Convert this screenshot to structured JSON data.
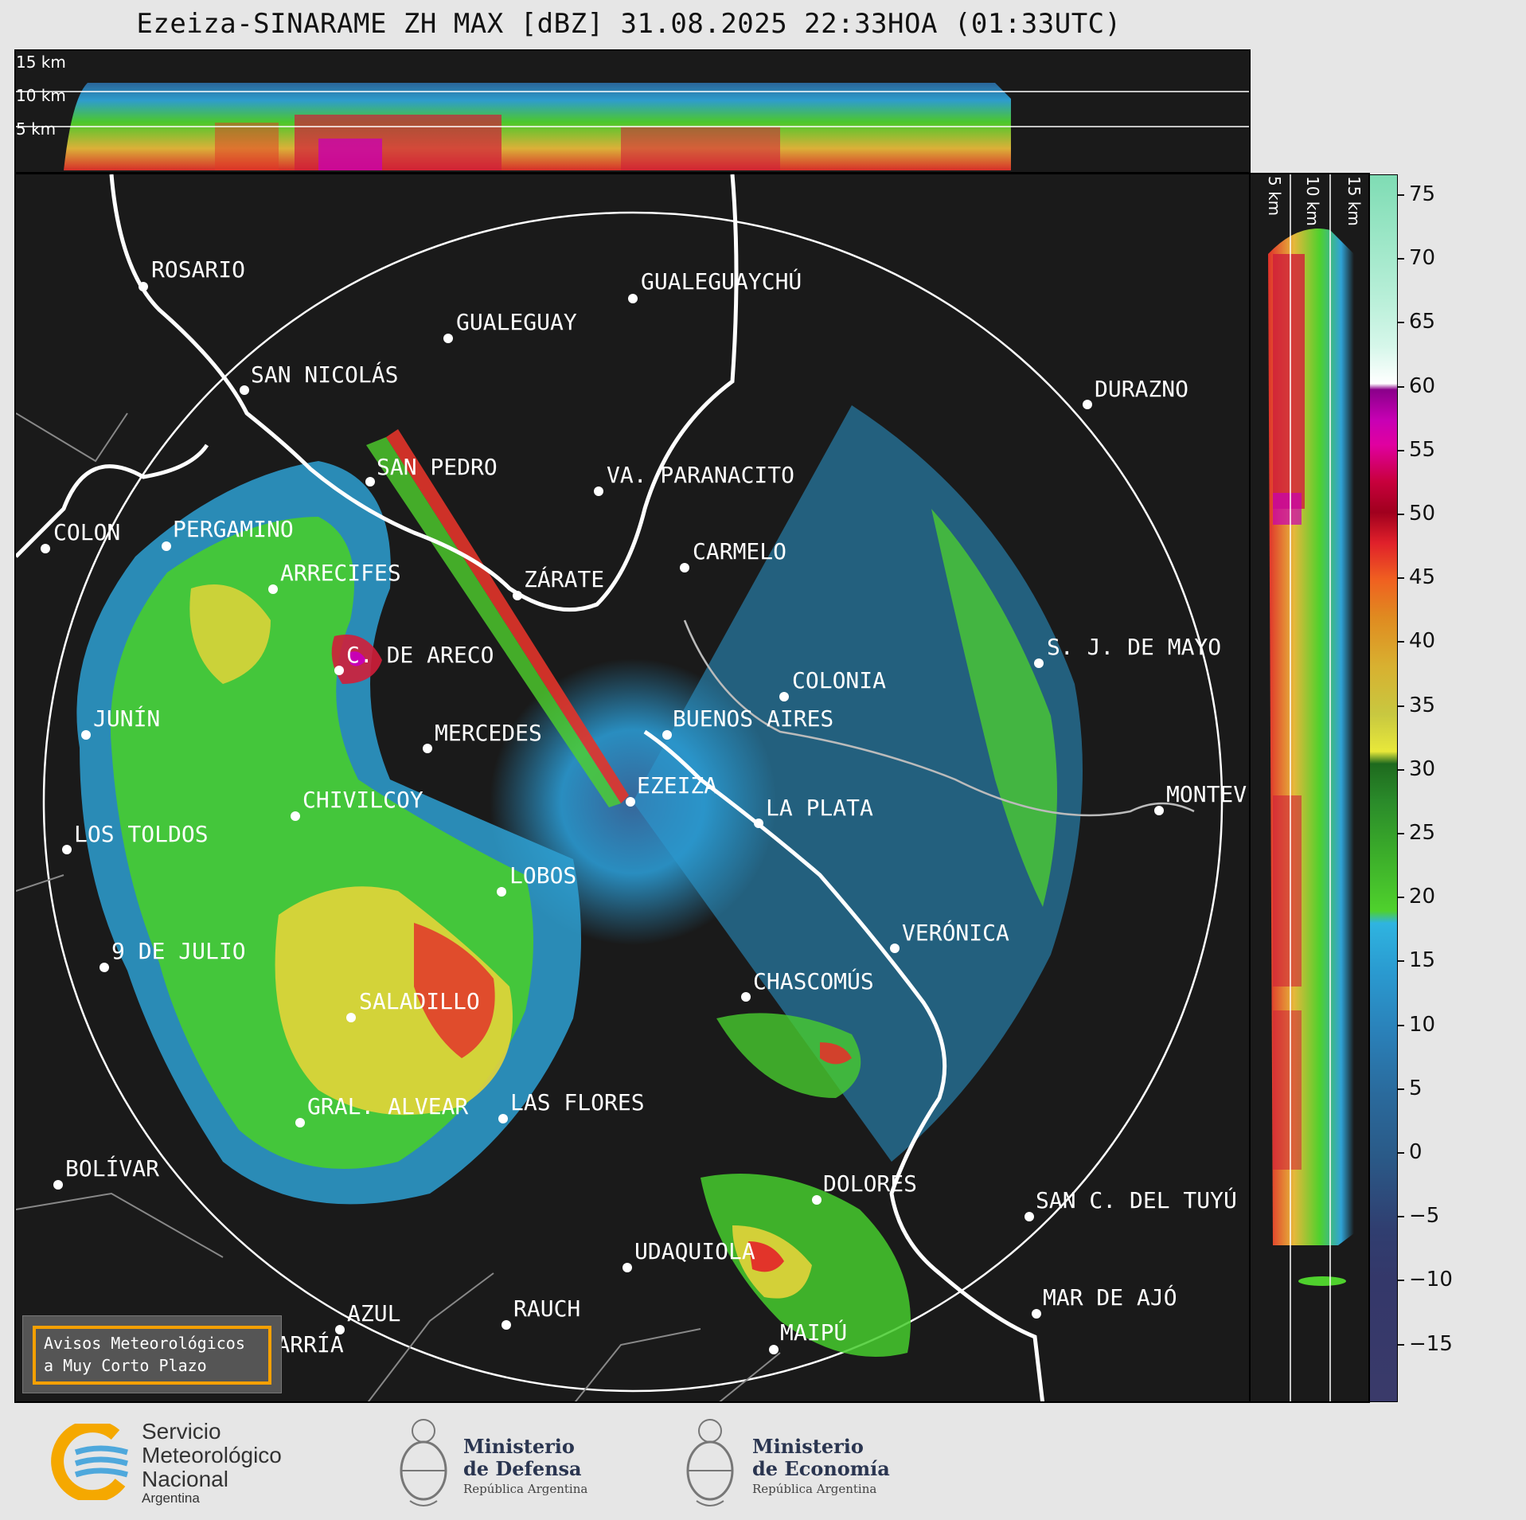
{
  "title": "Ezeiza-SINARAME ZH MAX [dBZ] 31.08.2025 22:33HOA (01:33UTC)",
  "top_panel": {
    "alt_labels": [
      "15 km",
      "10 km",
      "5 km"
    ]
  },
  "side_panel": {
    "alt_labels": [
      "5 km",
      "10 km",
      "15 km"
    ]
  },
  "colorbar": {
    "ticks": [
      "75",
      "70",
      "65",
      "60",
      "55",
      "50",
      "45",
      "40",
      "35",
      "30",
      "25",
      "20",
      "15",
      "10",
      "5",
      "0",
      "−5",
      "−10",
      "−15"
    ]
  },
  "cities": [
    {
      "label": "ROSARIO"
    },
    {
      "label": "GUALEGUAYCHÚ"
    },
    {
      "label": "GUALEGUAY"
    },
    {
      "label": "SAN NICOLÁS"
    },
    {
      "label": "DURAZNO"
    },
    {
      "label": "SAN PEDRO"
    },
    {
      "label": "VA. PARANACITO"
    },
    {
      "label": "COLON"
    },
    {
      "label": "PERGAMINO"
    },
    {
      "label": "CARMELO"
    },
    {
      "label": "ARRECIFES"
    },
    {
      "label": "ZÁRATE"
    },
    {
      "label": "S. J. DE MAYO"
    },
    {
      "label": "C. DE ARECO"
    },
    {
      "label": "COLONIA"
    },
    {
      "label": "JUNÍN"
    },
    {
      "label": "BUENOS AIRES"
    },
    {
      "label": "MERCEDES"
    },
    {
      "label": "EZEIZA"
    },
    {
      "label": "MONTEV"
    },
    {
      "label": "CHIVILCOY"
    },
    {
      "label": "LA PLATA"
    },
    {
      "label": "LOS TOLDOS"
    },
    {
      "label": "LOBOS"
    },
    {
      "label": "VERÓNICA"
    },
    {
      "label": "9 DE JULIO"
    },
    {
      "label": "CHASCOMÚS"
    },
    {
      "label": "SALADILLO"
    },
    {
      "label": "GRAL. ALVEAR"
    },
    {
      "label": "LAS FLORES"
    },
    {
      "label": "BOLÍVAR"
    },
    {
      "label": "DOLORES"
    },
    {
      "label": "SAN C. DEL TUYÚ"
    },
    {
      "label": "UDAQUIOLA"
    },
    {
      "label": "MAR DE AJÓ"
    },
    {
      "label": "AZUL"
    },
    {
      "label": "RAUCH"
    },
    {
      "label": "OLAVARRÍA"
    },
    {
      "label": "MAIPÚ"
    }
  ],
  "alert": {
    "line1": "Avisos Meteorológicos",
    "line2": "a Muy Corto Plazo"
  },
  "logos": {
    "smn": {
      "line1": "Servicio",
      "line2": "Meteorológico",
      "line3": "Nacional",
      "line4": "Argentina"
    },
    "defensa": {
      "line1": "Ministerio",
      "line2": "de Defensa",
      "line3": "República Argentina"
    },
    "economia": {
      "line1": "Ministerio",
      "line2": "de Economía",
      "line3": "República Argentina"
    }
  },
  "colors": {
    "background": "#1a1a1a",
    "brand_smn_orange": "#f5a800",
    "brand_smn_blue": "#4ea8dc",
    "alert_border": "#f5a000"
  }
}
